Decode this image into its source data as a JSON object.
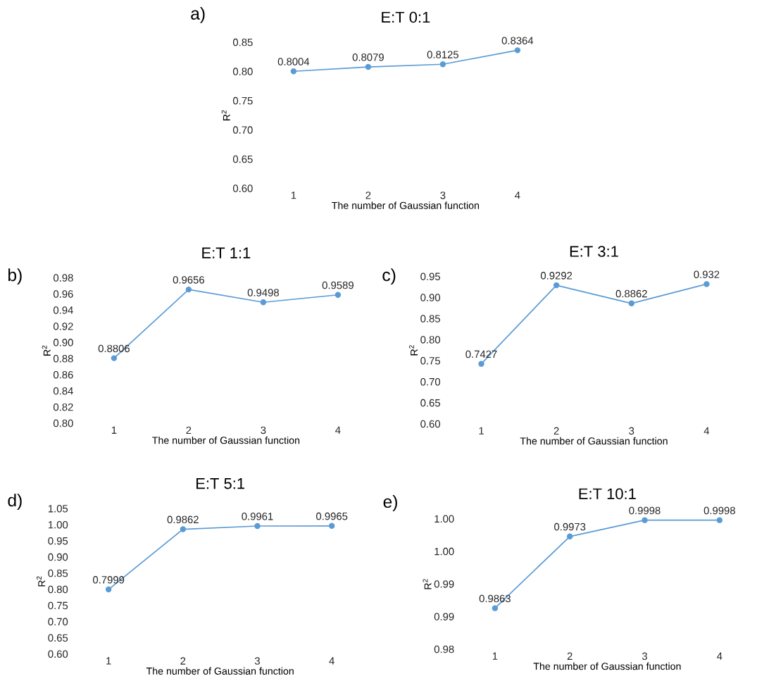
{
  "chart_data": [
    {
      "type": "line",
      "title": "E:T 0:1",
      "xlabel": "The number of Gaussian function",
      "ylabel": "R$^{2}$",
      "annotations": [
        "a)"
      ],
      "categories": [
        "1",
        "2",
        "3",
        "4"
      ],
      "values": [
        0.8004,
        0.8079,
        0.8125,
        0.8364
      ],
      "color": "#5b9bd5",
      "marker": "circle",
      "data_labels": true,
      "ylim": [
        0.6,
        0.85
      ],
      "yticks": [
        {
          "value": 0.6,
          "label": "0.60"
        },
        0.65,
        {
          "value": 0.7,
          "label": "0.70"
        },
        0.75,
        {
          "value": 0.8,
          "label": "0.80"
        },
        0.85
      ]
    },
    {
      "type": "line",
      "title": "E:T 1:1",
      "xlabel": "The number of Gaussian function",
      "ylabel": "R$^{2}$",
      "annotations": [
        "b)"
      ],
      "categories": [
        "1",
        "2",
        "3",
        "4"
      ],
      "values": [
        0.8806,
        0.9656,
        0.9498,
        0.9589
      ],
      "color": "#5b9bd5",
      "marker": "circle",
      "data_labels": true,
      "ylim": [
        0.8,
        0.98
      ],
      "yticks": [
        {
          "value": 0.8,
          "label": "0.80"
        },
        0.82,
        0.84,
        0.86,
        0.88,
        {
          "value": 0.9,
          "label": "0.90"
        },
        0.92,
        0.94,
        0.96,
        0.98
      ]
    },
    {
      "type": "line",
      "title": "E:T 3:1",
      "xlabel": "The number of Gaussian function",
      "ylabel": "R$^{2}$",
      "annotations": [
        "c)"
      ],
      "categories": [
        "1",
        "2",
        "3",
        "4"
      ],
      "values": [
        0.7427,
        0.9292,
        0.8862,
        0.932
      ],
      "color": "#5b9bd5",
      "marker": "circle",
      "data_labels": true,
      "ylim": [
        0.6,
        0.95
      ],
      "yticks": [
        {
          "value": 0.6,
          "label": "0.60"
        },
        0.65,
        {
          "value": 0.7,
          "label": "0.70"
        },
        0.75,
        {
          "value": 0.8,
          "label": "0.80"
        },
        0.85,
        {
          "value": 0.9,
          "label": "0.90"
        },
        0.95
      ]
    },
    {
      "type": "line",
      "title": "E:T 5:1",
      "xlabel": "The number of Gaussian function",
      "ylabel": "R$^{2}$",
      "annotations": [
        "d)"
      ],
      "categories": [
        "1",
        "2",
        "3",
        "4"
      ],
      "values": [
        0.7999,
        0.9862,
        0.9961,
        0.9965
      ],
      "color": "#5b9bd5",
      "marker": "circle",
      "data_labels": true,
      "ylim": [
        0.6,
        1.05
      ],
      "yticks": [
        {
          "value": 0.6,
          "label": "0.60"
        },
        0.65,
        {
          "value": 0.7,
          "label": "0.70"
        },
        0.75,
        {
          "value": 0.8,
          "label": "0.80"
        },
        0.85,
        {
          "value": 0.9,
          "label": "0.90"
        },
        0.95,
        {
          "value": 1.0,
          "label": "1.00"
        },
        1.05
      ]
    },
    {
      "type": "line",
      "title": "E:T 10:1",
      "xlabel": "The number of Gaussian function",
      "ylabel": "R$^{2}$",
      "annotations": [
        "e)"
      ],
      "categories": [
        "1",
        "2",
        "3",
        "4"
      ],
      "values": [
        0.9863,
        0.9973,
        0.9998,
        0.9998
      ],
      "color": "#5b9bd5",
      "marker": "circle",
      "data_labels": true,
      "ylim": [
        0.98,
        1.0
      ],
      "yticks": [
        {
          "value": 0.98,
          "label": "0.98"
        },
        {
          "value": 0.985,
          "label": "0.99"
        },
        {
          "value": 0.99,
          "label": "0.99"
        },
        {
          "value": 0.995,
          "label": "1.00"
        },
        {
          "value": 1.0,
          "label": "1.00"
        }
      ]
    }
  ]
}
